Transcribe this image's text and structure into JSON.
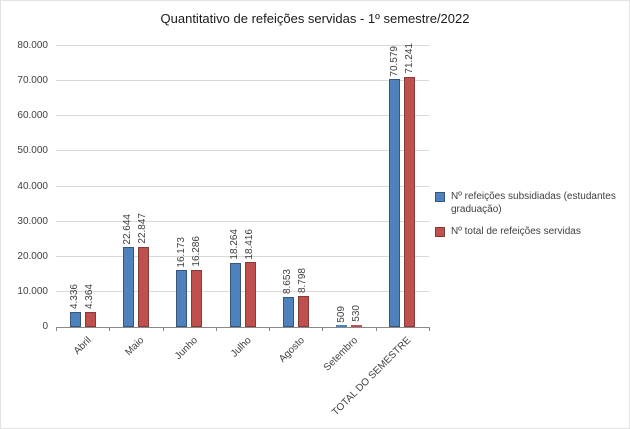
{
  "title": "Quantitativo de refeições servidas - 1º semestre/2022",
  "chart_data": {
    "type": "bar",
    "title": "Quantitativo de refeições servidas - 1º semestre/2022",
    "categories": [
      "Abril",
      "Maio",
      "Junho",
      "Julho",
      "Agosto",
      "Setembro",
      "TOTAL DO SEMESTRE"
    ],
    "series": [
      {
        "name": "Nº refeições subsidiadas (estudantes graduação)",
        "color": "#4f81bd",
        "border_color": "#36567e",
        "values": [
          4336,
          22644,
          16173,
          18264,
          8653,
          509,
          70579
        ],
        "labels": [
          "4.336",
          "22.644",
          "16.173",
          "18.264",
          "8.653",
          "509",
          "70.579"
        ]
      },
      {
        "name": "Nº total de refeições servidas",
        "color": "#c0504d",
        "border_color": "#843c3a",
        "values": [
          4364,
          22847,
          16286,
          18416,
          8798,
          530,
          71241
        ],
        "labels": [
          "4.364",
          "22.847",
          "16.286",
          "18.416",
          "8.798",
          "530",
          "71.241"
        ]
      }
    ],
    "ylim": [
      0,
      80000
    ],
    "ytick_labels": [
      "0",
      "10.000",
      "20.000",
      "30.000",
      "40.000",
      "50.000",
      "60.000",
      "70.000",
      "80.000"
    ],
    "grid": true,
    "legend_position": "right",
    "xlabel": "",
    "ylabel": ""
  }
}
